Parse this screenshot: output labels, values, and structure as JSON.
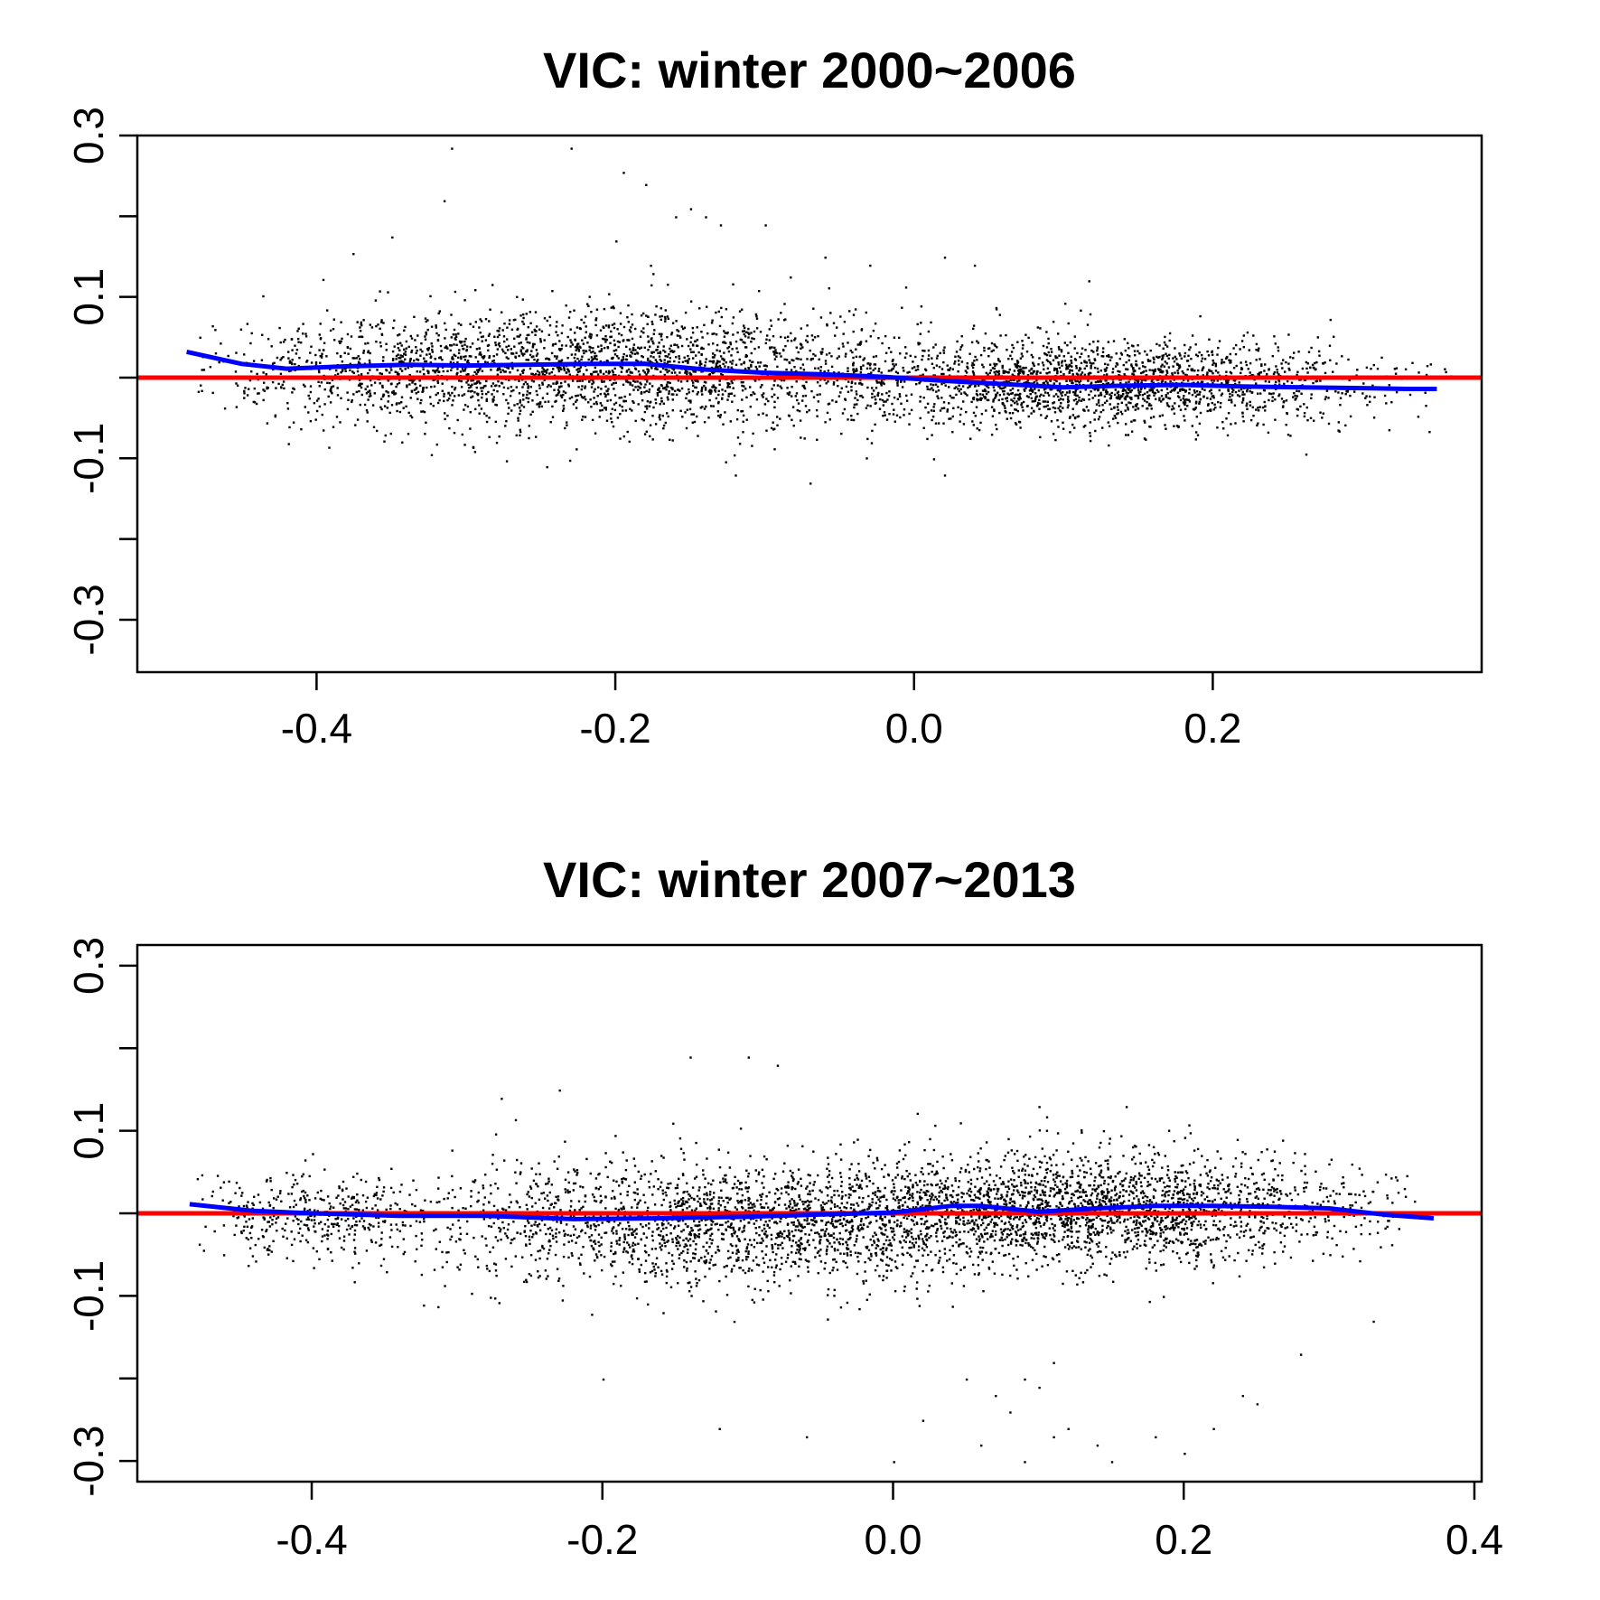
{
  "chart_data": [
    {
      "type": "scatter",
      "title": "VIC: winter 2000~2006",
      "xlabel": "",
      "ylabel": "",
      "xlim": [
        -0.52,
        0.38
      ],
      "ylim": [
        -0.365,
        0.3
      ],
      "xticks": [
        -0.4,
        -0.2,
        0.0,
        0.2
      ],
      "xtick_labels": [
        "-0.4",
        "-0.2",
        "0.0",
        "0.2"
      ],
      "yticks": [
        -0.3,
        -0.2,
        -0.1,
        0.0,
        0.1,
        0.2,
        0.3
      ],
      "ytick_labels": [
        "-0.3",
        "",
        "-0.1",
        "",
        "0.1",
        "",
        "0.3"
      ],
      "grid": false,
      "scatter_color": "#000000",
      "points_description_range": "dense cloud spanning x from -0.47 to 0.34, y mostly between -0.12 and 0.14",
      "reference_line": {
        "y": 0.0,
        "color": "#ff0000"
      },
      "smooth_line": {
        "color": "#0000ff",
        "x": [
          -0.487,
          -0.45,
          -0.42,
          -0.38,
          -0.34,
          -0.3,
          -0.26,
          -0.22,
          -0.18,
          -0.14,
          -0.1,
          -0.06,
          -0.02,
          0.02,
          0.06,
          0.1,
          0.14,
          0.18,
          0.22,
          0.26,
          0.3,
          0.33,
          0.35
        ],
        "y": [
          0.032,
          0.017,
          0.011,
          0.014,
          0.016,
          0.015,
          0.016,
          0.017,
          0.017,
          0.01,
          0.006,
          0.004,
          0.001,
          -0.004,
          -0.008,
          -0.012,
          -0.01,
          -0.009,
          -0.011,
          -0.012,
          -0.013,
          -0.014,
          -0.014
        ]
      }
    },
    {
      "type": "scatter",
      "title": "VIC: winter 2007~2013",
      "xlabel": "",
      "ylabel": "",
      "xlim": [
        -0.52,
        0.405
      ],
      "ylim": [
        -0.325,
        0.325
      ],
      "xticks": [
        -0.4,
        -0.2,
        0.0,
        0.2,
        0.4
      ],
      "xtick_labels": [
        "-0.4",
        "-0.2",
        "0.0",
        "0.2",
        "0.4"
      ],
      "yticks": [
        -0.3,
        -0.2,
        -0.1,
        0.0,
        0.1,
        0.2,
        0.3
      ],
      "ytick_labels": [
        "-0.3",
        "",
        "-0.1",
        "",
        "0.1",
        "",
        "0.3"
      ],
      "grid": false,
      "scatter_color": "#000000",
      "points_description_range": "dense cloud spanning x from -0.49 to 0.37, y mostly between -0.15 and 0.12 with sparse outliers down to -0.3",
      "reference_line": {
        "y": 0.0,
        "color": "#ff0000"
      },
      "smooth_line": {
        "color": "#0000ff",
        "x": [
          -0.484,
          -0.44,
          -0.4,
          -0.34,
          -0.28,
          -0.22,
          -0.16,
          -0.1,
          -0.04,
          0.0,
          0.04,
          0.06,
          0.1,
          0.14,
          0.18,
          0.22,
          0.26,
          0.3,
          0.34,
          0.372
        ],
        "y": [
          0.011,
          0.003,
          0.0,
          -0.003,
          -0.003,
          -0.007,
          -0.006,
          -0.004,
          -0.001,
          0.001,
          0.009,
          0.009,
          0.002,
          0.006,
          0.009,
          0.009,
          0.008,
          0.006,
          -0.002,
          -0.006
        ]
      }
    }
  ]
}
